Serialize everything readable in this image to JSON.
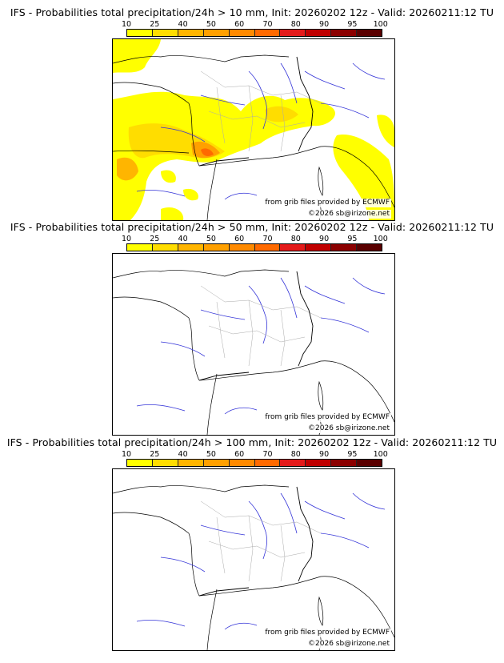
{
  "legend": {
    "ticks": [
      "10",
      "25",
      "40",
      "50",
      "60",
      "70",
      "80",
      "90",
      "95",
      "100"
    ],
    "colors": [
      "#ffff00",
      "#ffdd00",
      "#ffb500",
      "#ffa000",
      "#ff8a00",
      "#ff6a00",
      "#e41a1a",
      "#c00000",
      "#8b0000",
      "#5a0000"
    ]
  },
  "map_credits": {
    "source": "from grib files provided by ECMWF",
    "copyright": "©2026 sb@irizone.net"
  },
  "panels": [
    {
      "title": "IFS - Probabilities total precipitation/24h > 10 mm, Init: 20260202 12z - Valid: 20260211:12 TU",
      "threshold_mm": 10,
      "has_signal": true
    },
    {
      "title": "IFS - Probabilities total precipitation/24h > 50 mm, Init: 20260202 12z - Valid: 20260211:12 TU",
      "threshold_mm": 50,
      "has_signal": false
    },
    {
      "title": "IFS - Probabilities total precipitation/24h > 100 mm, Init: 20260202 12z - Valid: 20260211:12 TU",
      "threshold_mm": 100,
      "has_signal": false
    }
  ]
}
